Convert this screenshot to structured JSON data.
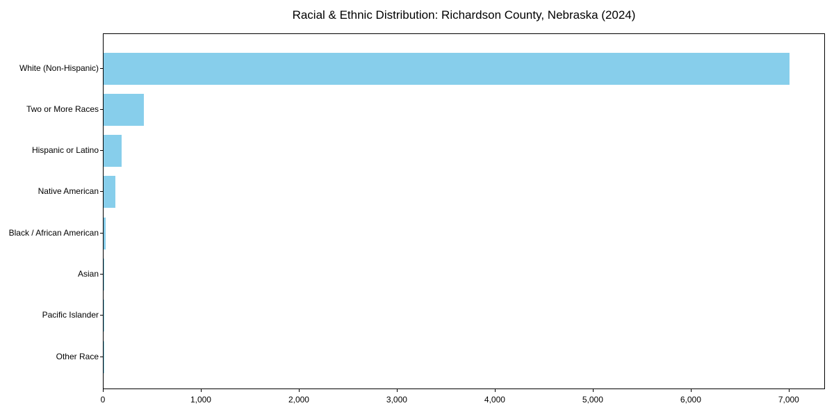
{
  "chart": {
    "title": "Racial & Ethnic Distribution: Richardson County, Nebraska (2024)"
  },
  "chart_data": {
    "type": "bar",
    "orientation": "horizontal",
    "title": "Racial & Ethnic Distribution: Richardson County, Nebraska (2024)",
    "categories": [
      "White (Non-Hispanic)",
      "Two or More Races",
      "Hispanic or Latino",
      "Native American",
      "Black / African American",
      "Asian",
      "Pacific Islander",
      "Other Race"
    ],
    "values": [
      7000,
      410,
      185,
      120,
      20,
      10,
      3,
      2
    ],
    "xlabel": "",
    "ylabel": "",
    "xlim": [
      0,
      7370
    ],
    "xticks": [
      0,
      1000,
      2000,
      3000,
      4000,
      5000,
      6000,
      7000
    ],
    "xtick_labels": [
      "0",
      "1,000",
      "2,000",
      "3,000",
      "4,000",
      "5,000",
      "6,000",
      "7,000"
    ],
    "bar_color": "#87CEEB",
    "frame_color": "#000000",
    "background_color": "#ffffff",
    "grid": false,
    "legend": false
  }
}
